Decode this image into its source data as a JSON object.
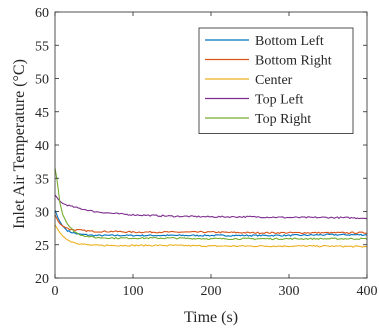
{
  "chart_data": {
    "type": "line",
    "xlabel": "Time (s)",
    "ylabel": "Inlet Air Temperature (°C)",
    "xlim": [
      0,
      400
    ],
    "ylim": [
      20,
      60
    ],
    "xticks": [
      0,
      100,
      200,
      300,
      400
    ],
    "yticks": [
      20,
      25,
      30,
      35,
      40,
      45,
      50,
      55,
      60
    ],
    "grid": false,
    "legend_position": "top-right",
    "series": [
      {
        "name": "Bottom Left",
        "color": "#0072BD",
        "x": [
          0,
          5,
          10,
          15,
          20,
          30,
          40,
          50,
          75,
          100,
          150,
          200,
          250,
          300,
          350,
          400
        ],
        "y": [
          30.2,
          28.7,
          27.8,
          27.2,
          26.9,
          26.6,
          26.5,
          26.4,
          26.4,
          26.4,
          26.4,
          26.4,
          26.4,
          26.4,
          26.5,
          26.5
        ]
      },
      {
        "name": "Bottom Right",
        "color": "#D95319",
        "x": [
          0,
          5,
          10,
          15,
          20,
          30,
          40,
          50,
          75,
          100,
          150,
          200,
          250,
          300,
          350,
          400
        ],
        "y": [
          29.5,
          28.3,
          27.8,
          27.5,
          27.3,
          27.2,
          27.1,
          27.0,
          27.0,
          26.9,
          26.9,
          26.9,
          26.8,
          26.8,
          26.8,
          26.8
        ]
      },
      {
        "name": "Center",
        "color": "#EDB120",
        "x": [
          0,
          5,
          10,
          15,
          20,
          30,
          40,
          50,
          75,
          100,
          150,
          200,
          250,
          300,
          350,
          400
        ],
        "y": [
          28.0,
          27.0,
          26.3,
          25.8,
          25.5,
          25.2,
          25.0,
          24.9,
          24.9,
          24.9,
          24.9,
          24.8,
          24.8,
          24.8,
          24.8,
          24.7
        ]
      },
      {
        "name": "Top Left",
        "color": "#7E2F8E",
        "x": [
          0,
          5,
          10,
          20,
          30,
          50,
          75,
          100,
          150,
          200,
          250,
          300,
          350,
          400
        ],
        "y": [
          32.5,
          31.7,
          31.2,
          30.8,
          30.5,
          30.0,
          29.7,
          29.5,
          29.3,
          29.2,
          29.2,
          29.1,
          29.1,
          29.0
        ]
      },
      {
        "name": "Top Right",
        "color": "#77AC30",
        "x": [
          0,
          3,
          6,
          10,
          15,
          20,
          25,
          30,
          40,
          50,
          75,
          100,
          150,
          200,
          250,
          300,
          350,
          400
        ],
        "y": [
          36.5,
          34.5,
          31.5,
          29.5,
          28.3,
          27.5,
          27.0,
          26.6,
          26.3,
          26.1,
          26.0,
          26.0,
          26.0,
          25.9,
          25.9,
          25.9,
          25.9,
          25.9
        ]
      }
    ]
  }
}
